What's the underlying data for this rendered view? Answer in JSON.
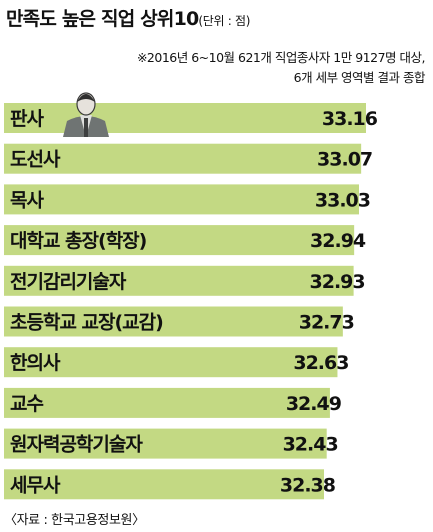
{
  "header": {
    "title": "만족도 높은 직업 상위10",
    "unit": "(단위 : 점)"
  },
  "note": {
    "line1": "※2016년 6~10월 621개 직업종사자 1만 9127명 대상,",
    "line2": "6개 세부 영역별 결과 종합"
  },
  "source": "〈자료 : 한국고용정보원〉",
  "colors": {
    "bar": "#c3d983",
    "text": "#111111",
    "figure": "#6f7473"
  },
  "icons": {
    "judge": "judge-figure-icon"
  },
  "chart_data": {
    "type": "bar",
    "orientation": "horizontal",
    "title": "만족도 높은 직업 상위10",
    "unit": "점",
    "categories": [
      "판사",
      "도선사",
      "목사",
      "대학교 총장(학장)",
      "전기감리기술자",
      "초등학교 교장(교감)",
      "한의사",
      "교수",
      "원자력공학기술자",
      "세무사"
    ],
    "values": [
      33.16,
      33.07,
      33.03,
      32.94,
      32.93,
      32.73,
      32.63,
      32.49,
      32.43,
      32.38
    ],
    "value_labels": [
      "33.16",
      "33.07",
      "33.03",
      "32.94",
      "32.93",
      "32.73",
      "32.63",
      "32.49",
      "32.43",
      "32.38"
    ]
  }
}
